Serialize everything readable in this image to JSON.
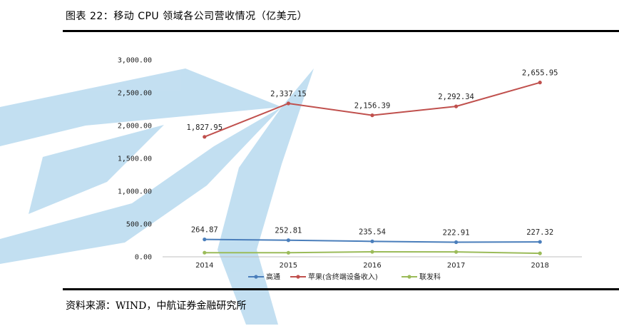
{
  "header": {
    "title": "图表 22：移动 CPU 领域各公司营收情况（亿美元）"
  },
  "footer": {
    "source": "资料来源：WIND，中航证券金融研究所"
  },
  "colors": {
    "watermark": "#bcdcf0",
    "qualcomm": "#4a7ebb",
    "apple": "#c0504d",
    "mtk": "#9bbb59"
  },
  "chart_data": {
    "type": "line",
    "categories": [
      "2014",
      "2015",
      "2016",
      "2017",
      "2018"
    ],
    "ylim": [
      0,
      3000
    ],
    "y_ticks": [
      "0.00",
      "500.00",
      "1,000.00",
      "1,500.00",
      "2,000.00",
      "2,500.00",
      "3,000.00"
    ],
    "y_tick_values": [
      0,
      500,
      1000,
      1500,
      2000,
      2500,
      3000
    ],
    "legend_position": "bottom",
    "grid": false,
    "series": [
      {
        "name": "高通",
        "values": [
          264.87,
          252.81,
          235.54,
          222.91,
          227.32
        ],
        "labels": [
          "264.87",
          "252.81",
          "235.54",
          "222.91",
          "227.32"
        ],
        "color": "#4a7ebb",
        "label_position": "above"
      },
      {
        "name": "苹果(含终端设备收入)",
        "values": [
          1827.95,
          2337.15,
          2156.39,
          2292.34,
          2655.95
        ],
        "labels": [
          "1,827.95",
          "2,337.15",
          "2,156.39",
          "2,292.34",
          "2,655.95"
        ],
        "color": "#c0504d",
        "label_position": "above"
      },
      {
        "name": "联发科",
        "values": [
          63,
          62,
          76,
          75,
          53
        ],
        "labels": [],
        "color": "#9bbb59",
        "label_position": "none"
      }
    ]
  }
}
